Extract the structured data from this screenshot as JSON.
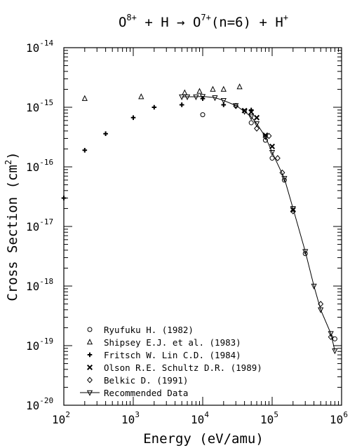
{
  "chart_data": {
    "type": "scatter",
    "title": "O8+ + H → O7+(n=6) + H+",
    "xlabel": "Energy (eV/amu)",
    "ylabel": "Cross Section (cm2)",
    "xscale": "log",
    "yscale": "log",
    "xlim": [
      100,
      1000000
    ],
    "ylim": [
      1e-20,
      1e-14
    ],
    "x_ticks": [
      {
        "value": 100,
        "base": "10",
        "exp": "2"
      },
      {
        "value": 1000,
        "base": "10",
        "exp": "3"
      },
      {
        "value": 10000,
        "base": "10",
        "exp": "4"
      },
      {
        "value": 100000,
        "base": "10",
        "exp": "5"
      },
      {
        "value": 1000000,
        "base": "10",
        "exp": "6"
      }
    ],
    "y_ticks": [
      {
        "value": 1e-14,
        "base": "10",
        "exp": "-14"
      },
      {
        "value": 1e-15,
        "base": "10",
        "exp": "-15"
      },
      {
        "value": 1e-16,
        "base": "10",
        "exp": "-16"
      },
      {
        "value": 1e-17,
        "base": "10",
        "exp": "-17"
      },
      {
        "value": 1e-18,
        "base": "10",
        "exp": "-18"
      },
      {
        "value": 1e-19,
        "base": "10",
        "exp": "-19"
      },
      {
        "value": 1e-20,
        "base": "10",
        "exp": "-20"
      }
    ],
    "grid": false,
    "legend_position": "bottom-left",
    "series": [
      {
        "name": "Ryufuku H. (1982)",
        "marker": "circle",
        "points": [
          [
            10000,
            7.5e-16
          ],
          [
            50000,
            5.5e-16
          ],
          [
            80000,
            2.8e-16
          ],
          [
            100000,
            1.4e-16
          ],
          [
            150000,
            6e-17
          ],
          [
            300000,
            3.5e-18
          ],
          [
            800000,
            1.3e-19
          ]
        ]
      },
      {
        "name": "Shipsey E.J. et al. (1983)",
        "marker": "triangle",
        "points": [
          [
            200,
            1.4e-15
          ],
          [
            1300,
            1.5e-15
          ],
          [
            5500,
            1.75e-15
          ],
          [
            9000,
            1.85e-15
          ],
          [
            14000,
            2e-15
          ],
          [
            20000,
            2e-15
          ],
          [
            34000,
            2.2e-15
          ]
        ]
      },
      {
        "name": "Fritsch W. Lin C.D. (1984)",
        "marker": "plus",
        "points": [
          [
            100,
            3e-17
          ],
          [
            200,
            1.9e-16
          ],
          [
            400,
            3.6e-16
          ],
          [
            1000,
            6.7e-16
          ],
          [
            2000,
            1e-15
          ],
          [
            5000,
            1.1e-15
          ],
          [
            10000,
            1.4e-15
          ],
          [
            20000,
            1.1e-15
          ],
          [
            50000,
            9e-16
          ]
        ]
      },
      {
        "name": "Olson R.E. Schultz D.R. (1989)",
        "marker": "cross",
        "points": [
          [
            40000,
            8.8e-16
          ],
          [
            50000,
            8.3e-16
          ],
          [
            60000,
            6.7e-16
          ],
          [
            80000,
            3.4e-16
          ],
          [
            100000,
            2.2e-16
          ],
          [
            200000,
            1.9e-17
          ]
        ]
      },
      {
        "name": "Belkic D. (1991)",
        "marker": "diamond",
        "points": [
          [
            30000,
            1.05e-15
          ],
          [
            60000,
            4.4e-16
          ],
          [
            90000,
            3.3e-16
          ],
          [
            120000,
            1.4e-16
          ],
          [
            140000,
            8e-17
          ],
          [
            200000,
            1.8e-17
          ],
          [
            500000,
            5e-19
          ],
          [
            700000,
            1.4e-19
          ]
        ]
      },
      {
        "name": "Recommended Data",
        "marker": "inverted-triangle",
        "line": true,
        "points": [
          [
            5000,
            1.5e-15
          ],
          [
            6000,
            1.5e-15
          ],
          [
            8000,
            1.5e-15
          ],
          [
            10000,
            1.52e-15
          ],
          [
            15000,
            1.45e-15
          ],
          [
            20000,
            1.3e-15
          ],
          [
            30000,
            1.07e-15
          ],
          [
            40000,
            8.5e-16
          ],
          [
            50000,
            6.9e-16
          ],
          [
            60000,
            5.3e-16
          ],
          [
            80000,
            3.2e-16
          ],
          [
            100000,
            1.75e-16
          ],
          [
            150000,
            6.4e-17
          ],
          [
            200000,
            2e-17
          ],
          [
            300000,
            3.8e-18
          ],
          [
            400000,
            1e-18
          ],
          [
            500000,
            4e-19
          ],
          [
            700000,
            1.6e-19
          ],
          [
            800000,
            8.2e-20
          ]
        ]
      }
    ]
  }
}
